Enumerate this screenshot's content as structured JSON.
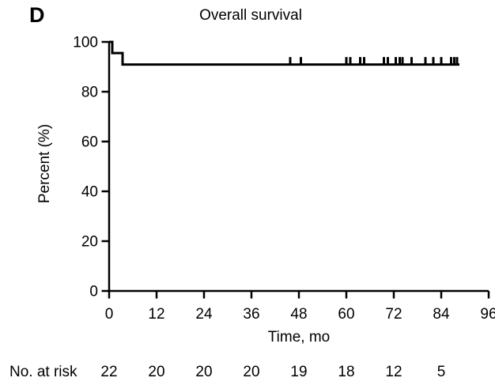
{
  "figure": {
    "panel_label": "D"
  },
  "colors": {
    "line": "#000000",
    "background": "#ffffff",
    "text": "#000000"
  },
  "chart_data": {
    "type": "line",
    "subtype": "kaplan-meier-step",
    "title": "Overall survival",
    "xlabel": "Time, mo",
    "ylabel": "Percent (%)",
    "xlim": [
      0,
      96
    ],
    "ylim": [
      0,
      100
    ],
    "x_ticks": [
      0,
      12,
      24,
      36,
      48,
      60,
      72,
      84,
      96
    ],
    "y_ticks": [
      0,
      20,
      40,
      60,
      80,
      100
    ],
    "grid": false,
    "legend": "none",
    "series": [
      {
        "name": "Overall survival",
        "color": "#000000",
        "steps": [
          [
            0,
            100
          ],
          [
            0.8,
            100
          ],
          [
            0.8,
            95.5
          ],
          [
            3.4,
            95.5
          ],
          [
            3.4,
            90.9
          ],
          [
            88.6,
            90.9
          ]
        ],
        "censor_level": 90.9,
        "censor_times": [
          45.8,
          48.5,
          60,
          61,
          63.5,
          64.5,
          69.5,
          70.5,
          72.5,
          73.5,
          74.2,
          76.5,
          80,
          82,
          84,
          86.5,
          87.3,
          88
        ]
      }
    ],
    "no_at_risk": {
      "label": "No. at risk",
      "times": [
        0,
        12,
        24,
        36,
        48,
        60,
        72,
        84
      ],
      "values": [
        22,
        20,
        20,
        20,
        19,
        18,
        12,
        5
      ]
    }
  }
}
